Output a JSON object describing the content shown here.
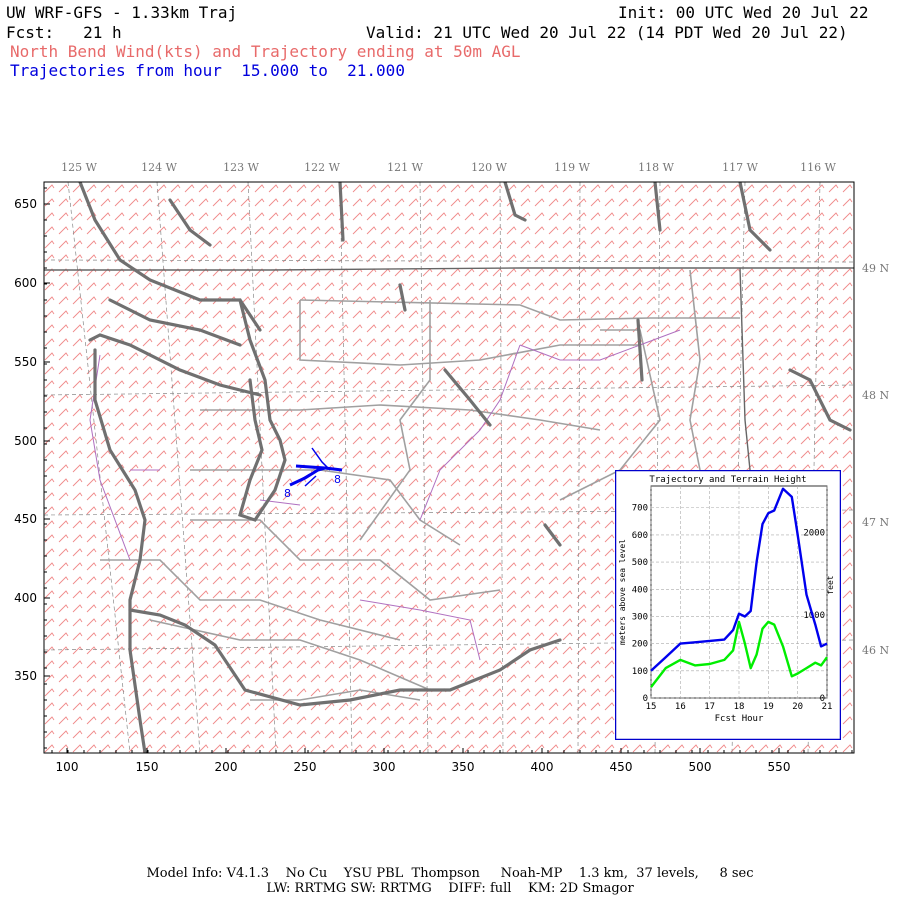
{
  "header": {
    "title": "UW WRF-GFS - 1.33km Traj",
    "init": "Init: 00 UTC Wed 20 Jul 22",
    "fcst": "Fcst:   21 h",
    "valid": "Valid: 21 UTC Wed 20 Jul 22 (14 PDT Wed 20 Jul 22)",
    "subtitle": "North Bend Wind(kts) and Trajectory ending at 50m AGL",
    "traj_range": "Trajectories from hour  15.000 to  21.000"
  },
  "map": {
    "x_ticks": [
      "100",
      "150",
      "200",
      "250",
      "300",
      "350",
      "400",
      "450",
      "500",
      "550"
    ],
    "y_ticks": [
      "650",
      "600",
      "550",
      "500",
      "450",
      "400",
      "350"
    ],
    "lon_labels": [
      "125 W",
      "124 W",
      "123 W",
      "122 W",
      "121 W",
      "120 W",
      "119 W",
      "118 W",
      "117 W",
      "116 W"
    ],
    "lat_labels": [
      "49 N",
      "48 N",
      "47 N",
      "46 N"
    ],
    "traj_markers": [
      "8",
      "8"
    ],
    "colors": {
      "wind_barbs": "#f08080",
      "trajectory": "#0000ee",
      "coast": "#707070",
      "borders": "#a0a0a0",
      "rivers": "#b070c0"
    }
  },
  "inset": {
    "title": "Trajectory and Terrain Height",
    "ylabel_left": "meters above sea level",
    "ylabel_right": "feet",
    "xlabel": "Fcst Hour",
    "x_ticks": [
      "15",
      "16",
      "17",
      "18",
      "19",
      "20",
      "21"
    ],
    "y_ticks_m": [
      "0",
      "100",
      "200",
      "300",
      "400",
      "500",
      "600",
      "700"
    ],
    "y_ticks_ft": [
      "0",
      "1000",
      "2000"
    ]
  },
  "chart_data": {
    "type": "line",
    "title": "Trajectory and Terrain Height",
    "xlabel": "Fcst Hour",
    "ylabel": "meters above sea level",
    "xlim": [
      15,
      21
    ],
    "ylim": [
      0,
      780
    ],
    "x": [
      15.0,
      15.5,
      16.0,
      16.5,
      17.0,
      17.5,
      17.8,
      18.0,
      18.2,
      18.4,
      18.6,
      18.8,
      19.0,
      19.2,
      19.5,
      19.8,
      20.0,
      20.3,
      20.6,
      20.8,
      21.0
    ],
    "series": [
      {
        "name": "",
        "color": "#0000ee",
        "values": [
          100,
          150,
          200,
          205,
          210,
          215,
          250,
          310,
          300,
          320,
          500,
          640,
          680,
          690,
          770,
          740,
          600,
          380,
          270,
          190,
          200
        ]
      },
      {
        "name": "",
        "color": "#00ee00",
        "values": [
          40,
          110,
          140,
          120,
          125,
          140,
          175,
          280,
          200,
          110,
          160,
          255,
          280,
          270,
          190,
          80,
          90,
          110,
          130,
          120,
          150
        ]
      }
    ]
  },
  "footer": {
    "line1": "Model Info: V4.1.3    No Cu    YSU PBL  Thompson     Noah-MP    1.3 km,  37 levels,     8 sec",
    "line2": "LW: RRTMG SW: RRTMG    DIFF: full    KM: 2D Smagor"
  }
}
